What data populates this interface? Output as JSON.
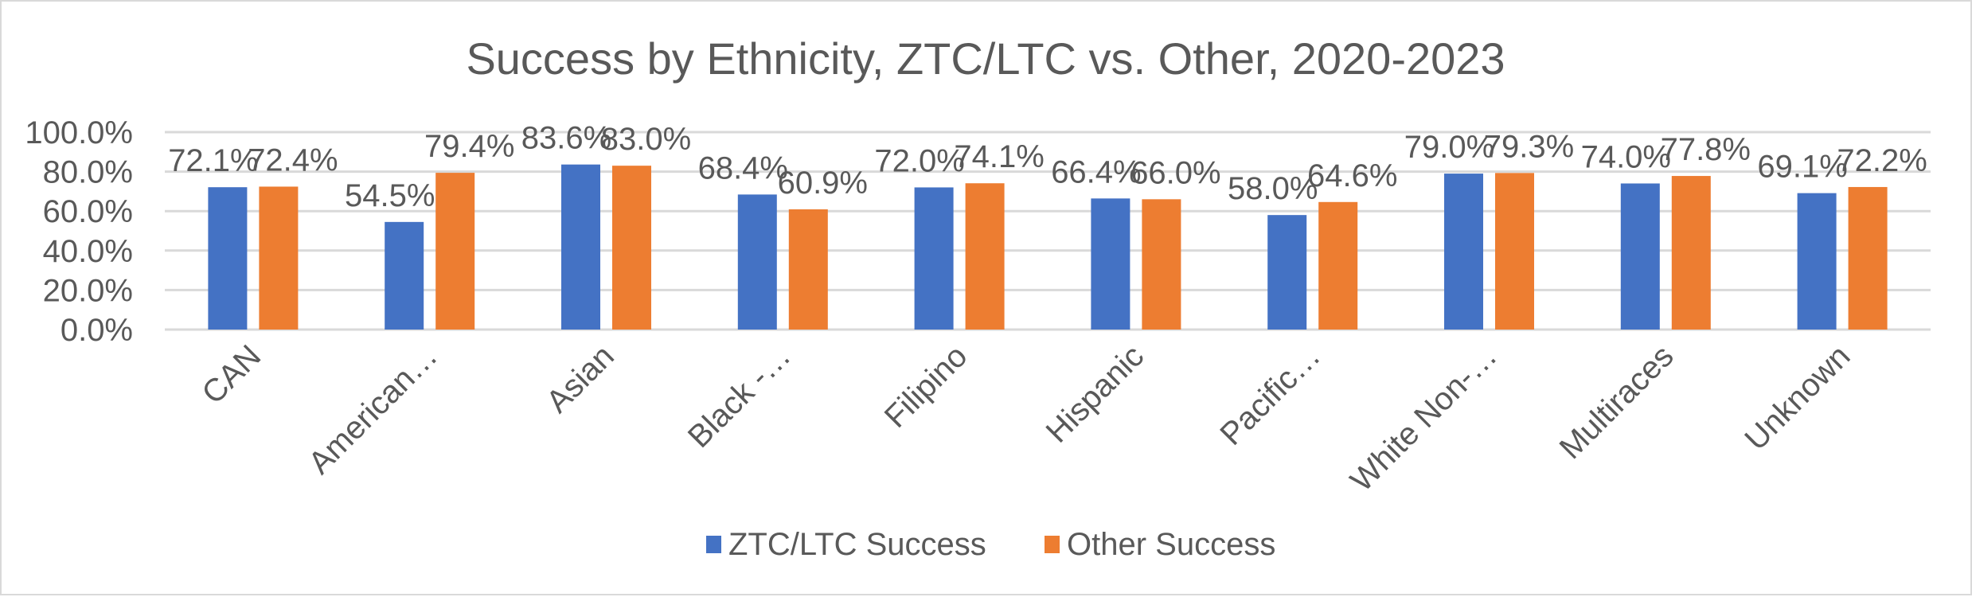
{
  "chart_data": {
    "type": "bar",
    "title": "Success by Ethnicity, ZTC/LTC vs. Other, 2020-2023",
    "xlabel": "",
    "ylabel": "",
    "ylim": [
      0,
      100
    ],
    "yticks": [
      "0.0%",
      "20.0%",
      "40.0%",
      "60.0%",
      "80.0%",
      "100.0%"
    ],
    "grid": true,
    "legend_position": "bottom",
    "categories": [
      "CAN",
      "American…",
      "Asian",
      "Black -…",
      "Filipino",
      "Hispanic",
      "Pacific…",
      "White Non-…",
      "Multiraces",
      "Unknown"
    ],
    "series": [
      {
        "name": "ZTC/LTC Success",
        "color": "#4472c4",
        "values": [
          72.1,
          54.5,
          83.6,
          68.4,
          72.0,
          66.4,
          58.0,
          79.0,
          74.0,
          69.1
        ],
        "labels": [
          "72.1%",
          "54.5%",
          "83.6%",
          "68.4%",
          "72.0%",
          "66.4%",
          "58.0%",
          "79.0%",
          "74.0%",
          "69.1%"
        ]
      },
      {
        "name": "Other Success",
        "color": "#ed7d31",
        "values": [
          72.4,
          79.4,
          83.0,
          60.9,
          74.1,
          66.0,
          64.6,
          79.3,
          77.8,
          72.2
        ],
        "labels": [
          "72.4%",
          "79.4%",
          "83.0%",
          "60.9%",
          "74.1%",
          "66.0%",
          "64.6%",
          "79.3%",
          "77.8%",
          "72.2%"
        ]
      }
    ]
  }
}
